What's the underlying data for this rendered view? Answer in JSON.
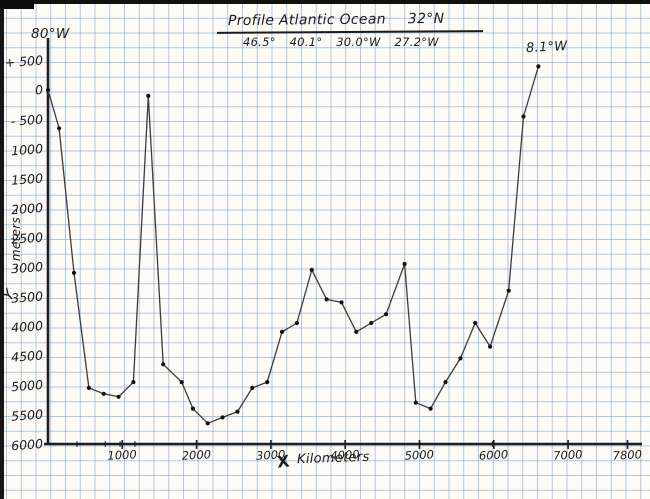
{
  "colors": {
    "ink": "#1d1d1d",
    "pencil_line": "#3c3c3c",
    "grid_blue": "#749ecb",
    "paper": "#fcfbf5"
  },
  "header": {
    "title": "Profile Atlantic Ocean",
    "latitude": "32°N",
    "longitude_marks": [
      "46.5°",
      "40.1°",
      "30.0°W",
      "27.2°W"
    ]
  },
  "annotations": {
    "start_longitude": "80°W",
    "end_longitude": "8.1°W",
    "y_axis_letter": "Y",
    "y_axis_units": "- meters -",
    "x_axis_letter": "X",
    "x_axis_units": "Kilometers"
  },
  "chart_data": {
    "type": "line",
    "title": "Profile Atlantic Ocean 32°N",
    "xlabel": "X Kilometers",
    "ylabel": "Y meters",
    "xlim": [
      0,
      7800
    ],
    "ylim": [
      500,
      -6000
    ],
    "grid": true,
    "legend": "none",
    "x_ticks": [
      {
        "label": "1000",
        "km": 1000
      },
      {
        "label": "2000",
        "km": 2000
      },
      {
        "label": "3000",
        "km": 3000
      },
      {
        "label": "4000",
        "km": 4000
      },
      {
        "label": "5000",
        "km": 5000
      },
      {
        "label": "6000",
        "km": 6000
      },
      {
        "label": "7000",
        "km": 7000
      },
      {
        "label": "7800",
        "km": 7800
      }
    ],
    "x_minor_ticks_km": [
      390,
      770,
      970,
      1170,
      5980
    ],
    "y_ticks": [
      {
        "label": "+ 500",
        "m": 500
      },
      {
        "label": "0",
        "m": 0
      },
      {
        "label": "- 500",
        "m": -500
      },
      {
        "label": "1000",
        "m": -1000
      },
      {
        "label": "1500",
        "m": -1500
      },
      {
        "label": "2000",
        "m": -2000
      },
      {
        "label": "2500",
        "m": -2500
      },
      {
        "label": "3000",
        "m": -3000
      },
      {
        "label": "3500",
        "m": -3500
      },
      {
        "label": "4000",
        "m": -4000
      },
      {
        "label": "4500",
        "m": -4500
      },
      {
        "label": "5000",
        "m": -5000
      },
      {
        "label": "5500",
        "m": -5500
      },
      {
        "label": "6000",
        "m": -6000
      }
    ],
    "points_km_m": [
      [
        0,
        0
      ],
      [
        150,
        -650
      ],
      [
        350,
        -3100
      ],
      [
        550,
        -5050
      ],
      [
        750,
        -5150
      ],
      [
        950,
        -5200
      ],
      [
        1150,
        -4950
      ],
      [
        1350,
        -100
      ],
      [
        1550,
        -4650
      ],
      [
        1800,
        -4950
      ],
      [
        1950,
        -5400
      ],
      [
        2150,
        -5650
      ],
      [
        2350,
        -5550
      ],
      [
        2550,
        -5450
      ],
      [
        2750,
        -5050
      ],
      [
        2950,
        -4950
      ],
      [
        3150,
        -4100
      ],
      [
        3350,
        -3950
      ],
      [
        3550,
        -3050
      ],
      [
        3750,
        -3550
      ],
      [
        3950,
        -3600
      ],
      [
        4150,
        -4100
      ],
      [
        4350,
        -3950
      ],
      [
        4550,
        -3800
      ],
      [
        4800,
        -2950
      ],
      [
        4950,
        -5300
      ],
      [
        5150,
        -5400
      ],
      [
        5350,
        -4950
      ],
      [
        5550,
        -4550
      ],
      [
        5750,
        -3950
      ],
      [
        5950,
        -4350
      ],
      [
        6200,
        -3400
      ],
      [
        6400,
        -450
      ],
      [
        6600,
        400
      ]
    ]
  }
}
